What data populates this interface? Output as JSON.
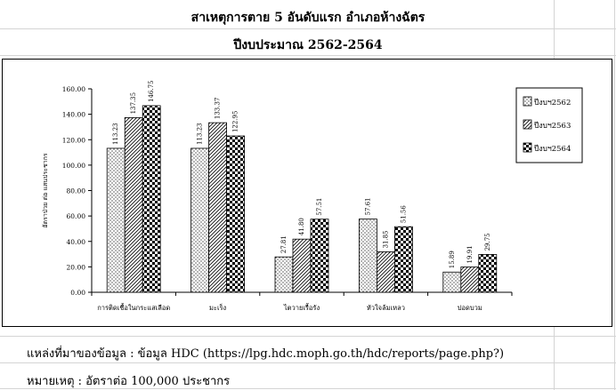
{
  "sheet": {
    "title": "สาเหตุการตาย 5 อันดับแรก  อำเภอห้างฉัตร",
    "subtitle": "ปีงบประมาณ 2562-2564",
    "source": "แหล่งที่มาของข้อมูล : ข้อมูล HDC (https://lpg.hdc.moph.go.th/hdc/reports/page.php?)",
    "note": "หมายเหตุ : อัตราต่อ 100,000 ประชากร"
  },
  "chart_data": {
    "type": "bar",
    "title": "",
    "ylabel": "อัตราป่วย ต่อ แสนประชากร",
    "xlabel": "",
    "ylim": [
      0,
      160
    ],
    "yticks": [
      "0.00",
      "20.00",
      "40.00",
      "60.00",
      "80.00",
      "100.00",
      "120.00",
      "140.00",
      "160.00"
    ],
    "categories": [
      "การติดเชื้อในกระแสเลือด",
      "มะเร็ง",
      "ไตวายเรื้อรัง",
      "หัวใจล้มเหลว",
      "ปอดบวม"
    ],
    "legend_position": "top-right",
    "series": [
      {
        "name": "ปีงบฯ2562",
        "pattern": "dots",
        "values": [
          113.23,
          113.23,
          27.81,
          57.61,
          15.89
        ],
        "labels": [
          "113.23",
          "113.23",
          "27.81",
          "57.61",
          "15.89"
        ]
      },
      {
        "name": "ปีงบฯ2563",
        "pattern": "diagonal",
        "values": [
          137.35,
          133.37,
          41.8,
          31.85,
          19.91
        ],
        "labels": [
          "137.35",
          "133.37",
          "41.80",
          "31.85",
          "19.91"
        ]
      },
      {
        "name": "ปีงบฯ2564",
        "pattern": "checker",
        "values": [
          146.75,
          122.95,
          57.51,
          51.56,
          29.75
        ],
        "labels": [
          "146.75",
          "122.95",
          "57.51",
          "51.56",
          "29.75"
        ]
      }
    ]
  }
}
